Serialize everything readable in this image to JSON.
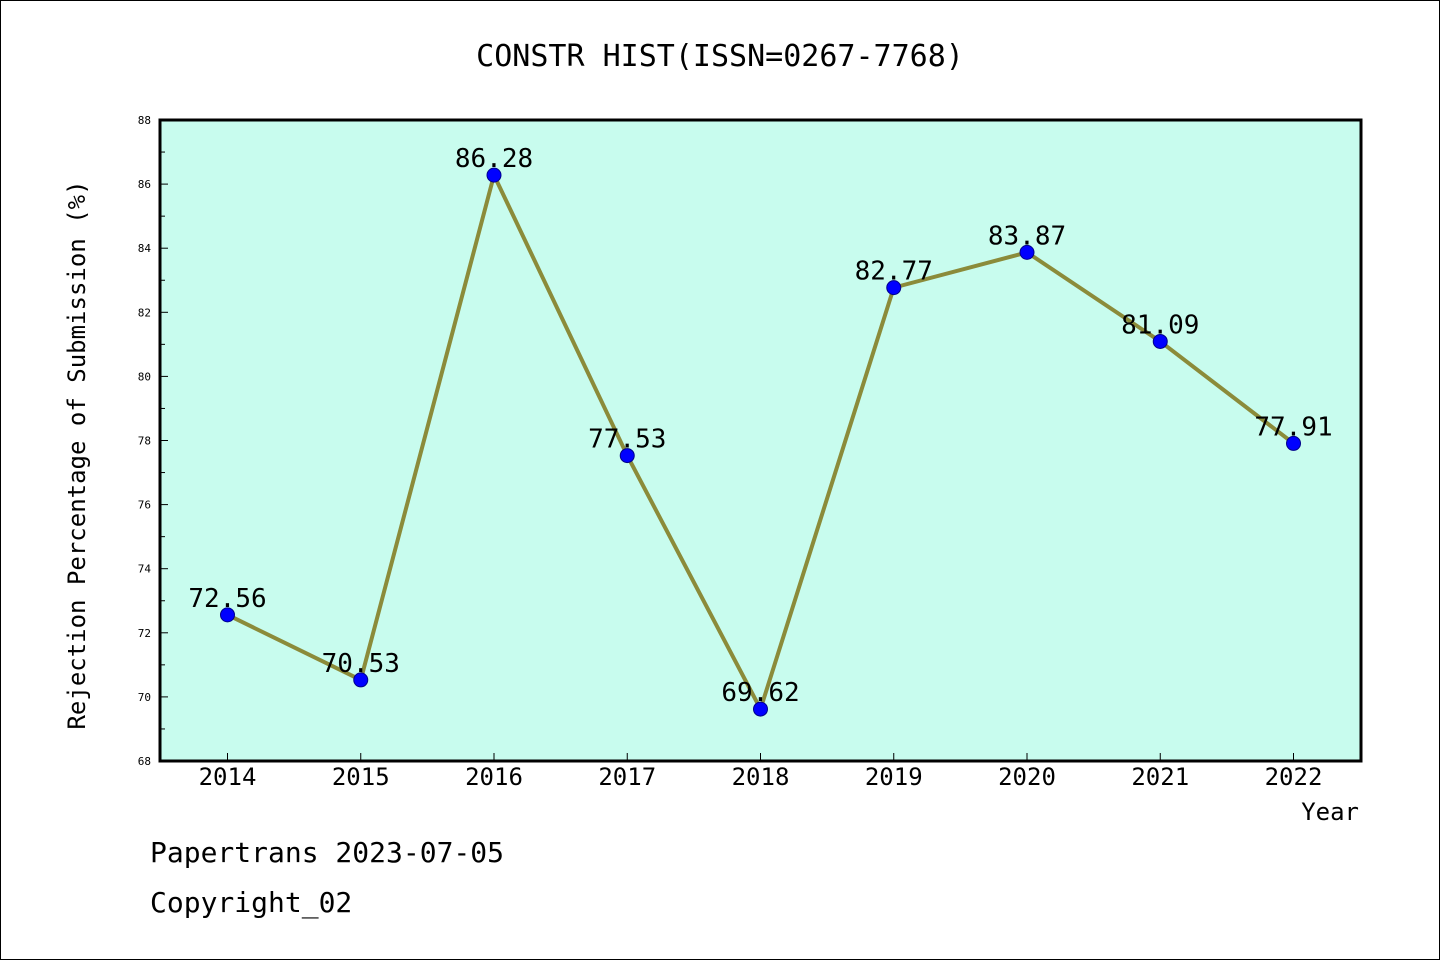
{
  "chart_data": {
    "type": "line",
    "title": "CONSTR HIST(ISSN=0267-7768)",
    "xlabel": "Year",
    "ylabel": "Rejection Percentage of Submission (%)",
    "categories": [
      "2014",
      "2015",
      "2016",
      "2017",
      "2018",
      "2019",
      "2020",
      "2021",
      "2022"
    ],
    "series": [
      {
        "values": [
          72.56,
          70.53,
          86.28,
          77.53,
          69.62,
          82.77,
          83.87,
          81.09,
          77.91
        ],
        "labels": [
          "72.56",
          "70.53",
          "86.28",
          "77.53",
          "69.62",
          "82.77",
          "83.87",
          "81.09",
          "77.91"
        ]
      }
    ],
    "ylim": [
      68,
      88
    ],
    "yticks": [
      "68",
      "70",
      "72",
      "74",
      "76",
      "78",
      "80",
      "82",
      "84",
      "86",
      "88"
    ],
    "grid": false,
    "colors": {
      "plot_background": "#c8fcee",
      "line": "#8b8b3a",
      "marker": "#0000ff"
    }
  },
  "footer": {
    "line1": "Papertrans 2023-07-05",
    "line2": "Copyright_02"
  }
}
